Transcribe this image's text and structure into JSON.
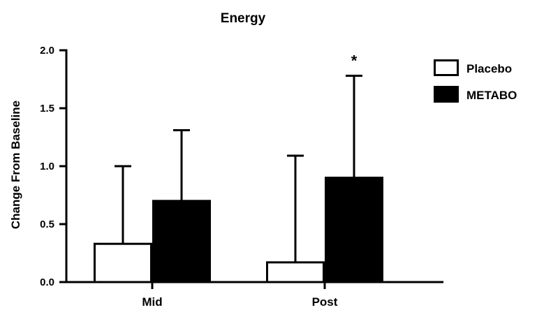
{
  "chart_data": {
    "type": "bar",
    "title": "Energy",
    "xlabel": "",
    "ylabel": "Change From Baseline",
    "categories": [
      "Mid",
      "Post"
    ],
    "ylim": [
      0,
      2.0
    ],
    "yticks": [
      "0.0",
      "0.5",
      "1.0",
      "1.5",
      "2.0"
    ],
    "grid": false,
    "legend_position": "right",
    "series": [
      {
        "name": "Placebo",
        "values": [
          0.33,
          0.17
        ],
        "error_upper": [
          1.0,
          1.09
        ],
        "fill": "#ffffff",
        "stroke": "#000000"
      },
      {
        "name": "METABO",
        "values": [
          0.7,
          0.9
        ],
        "error_upper": [
          1.31,
          1.78
        ],
        "fill": "#000000",
        "stroke": "#000000"
      }
    ],
    "annotations": [
      {
        "text": "*",
        "category": "Post",
        "series": "METABO"
      }
    ]
  }
}
